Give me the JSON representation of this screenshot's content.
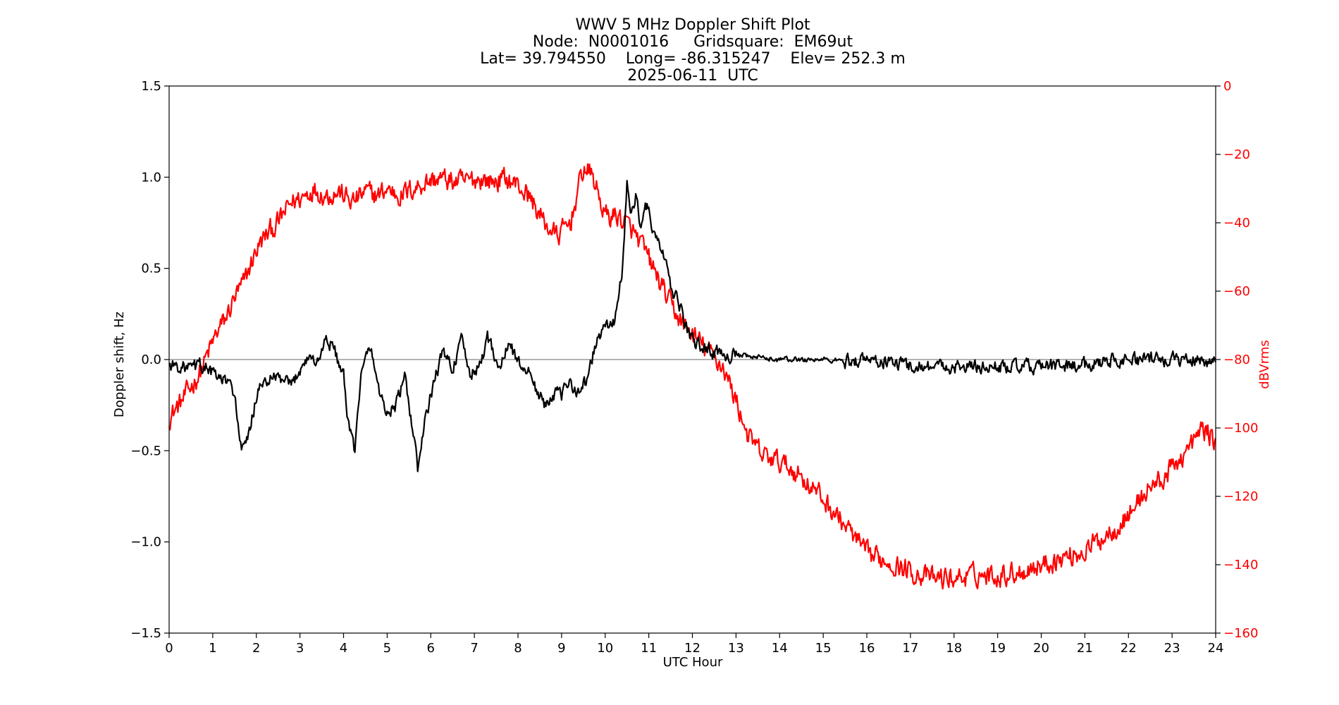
{
  "chart_data": {
    "type": "line",
    "title_lines": [
      "WWV 5 MHz Doppler Shift Plot",
      "Node:  N0001016     Gridsquare:  EM69ut",
      "Lat= 39.794550    Long= -86.315247    Elev= 252.3 m",
      "2025-06-11  UTC"
    ],
    "xlabel": "UTC Hour",
    "ylabel_left": "Doppler shift, Hz",
    "ylabel_right": "dBVrms",
    "xlim": [
      0,
      24
    ],
    "ylim_left": [
      -1.5,
      1.5
    ],
    "ylim_right": [
      -160,
      0
    ],
    "xticks": [
      "0",
      "1",
      "2",
      "3",
      "4",
      "5",
      "6",
      "7",
      "8",
      "9",
      "10",
      "11",
      "12",
      "13",
      "14",
      "15",
      "16",
      "17",
      "18",
      "19",
      "20",
      "21",
      "22",
      "23",
      "24"
    ],
    "yticks_left": [
      "1.5",
      "1.0",
      "0.5",
      "0.0",
      "−0.5",
      "−1.0",
      "−1.5"
    ],
    "yticks_left_values": [
      1.5,
      1.0,
      0.5,
      0.0,
      -0.5,
      -1.0,
      -1.5
    ],
    "yticks_right": [
      "0",
      "−20",
      "−40",
      "−60",
      "−80",
      "−100",
      "−120",
      "−140",
      "−160"
    ],
    "yticks_right_values": [
      0,
      -20,
      -40,
      -60,
      -80,
      -100,
      -120,
      -140,
      -160
    ],
    "zero_line": {
      "y": 0,
      "color": "#999999"
    },
    "grid": false,
    "series": [
      {
        "axis": "left",
        "color": "#000000",
        "jitter": 0.06,
        "x": [
          0,
          0.3,
          0.5,
          0.7,
          0.9,
          1.1,
          1.3,
          1.5,
          1.65,
          1.8,
          2.0,
          2.2,
          2.5,
          2.8,
          3.0,
          3.2,
          3.4,
          3.6,
          3.8,
          4.0,
          4.1,
          4.25,
          4.4,
          4.6,
          4.8,
          5.0,
          5.2,
          5.4,
          5.6,
          5.7,
          5.9,
          6.1,
          6.3,
          6.5,
          6.7,
          6.9,
          7.1,
          7.3,
          7.6,
          7.8,
          8.0,
          8.2,
          8.4,
          8.6,
          8.8,
          9.0,
          9.2,
          9.4,
          9.6,
          9.8,
          10.0,
          10.2,
          10.4,
          10.5,
          10.6,
          10.7,
          10.8,
          10.95,
          11.1,
          11.3,
          11.5,
          11.7,
          11.9,
          12.1,
          12.3,
          12.5,
          12.8,
          13.0,
          13.5,
          14.0,
          14.5,
          15.0,
          15.5,
          16.0,
          17.0,
          18.0,
          19.0,
          20.0,
          21.0,
          21.5,
          22.0,
          22.5,
          23.0,
          23.5,
          24.0
        ],
        "y": [
          -0.03,
          -0.04,
          -0.05,
          -0.03,
          -0.05,
          -0.1,
          -0.12,
          -0.18,
          -0.5,
          -0.45,
          -0.2,
          -0.12,
          -0.1,
          -0.15,
          -0.05,
          0.02,
          -0.02,
          0.12,
          0.05,
          -0.1,
          -0.35,
          -0.5,
          -0.1,
          0.08,
          -0.15,
          -0.3,
          -0.25,
          -0.1,
          -0.4,
          -0.6,
          -0.3,
          -0.1,
          0.05,
          -0.05,
          0.1,
          -0.08,
          -0.05,
          0.12,
          -0.05,
          0.1,
          -0.02,
          -0.05,
          -0.15,
          -0.25,
          -0.18,
          -0.2,
          -0.12,
          -0.18,
          -0.1,
          0.1,
          0.18,
          0.2,
          0.5,
          0.95,
          0.8,
          0.9,
          0.75,
          0.85,
          0.7,
          0.6,
          0.4,
          0.3,
          0.15,
          0.08,
          0.06,
          0.04,
          0.03,
          0.02,
          0.01,
          0.0,
          0.0,
          0.0,
          -0.01,
          0.0,
          -0.03,
          -0.04,
          -0.04,
          -0.04,
          -0.03,
          0.0,
          0.0,
          0.0,
          0.0,
          0.0,
          -0.01
        ]
      },
      {
        "axis": "right",
        "color": "#ff0000",
        "jitter": 5,
        "x": [
          0,
          0.3,
          0.5,
          0.7,
          0.9,
          1.1,
          1.3,
          1.5,
          1.7,
          2.0,
          2.2,
          2.5,
          2.8,
          3.0,
          3.3,
          3.6,
          3.9,
          4.2,
          4.5,
          4.8,
          5.0,
          5.3,
          5.6,
          5.9,
          6.2,
          6.5,
          6.8,
          7.1,
          7.4,
          7.7,
          8.0,
          8.3,
          8.6,
          8.9,
          9.2,
          9.5,
          9.7,
          10.0,
          10.3,
          10.6,
          10.9,
          11.2,
          11.5,
          11.8,
          12.1,
          12.4,
          12.7,
          13.0,
          13.3,
          13.6,
          14.0,
          14.4,
          14.8,
          15.2,
          15.6,
          16.0,
          16.5,
          17.0,
          17.5,
          18.0,
          18.5,
          19.0,
          19.5,
          20.0,
          20.5,
          21.0,
          21.3,
          21.6,
          21.9,
          22.2,
          22.5,
          22.8,
          23.1,
          23.4,
          23.7,
          24.0
        ],
        "y": [
          -97,
          -92,
          -88,
          -84,
          -78,
          -72,
          -68,
          -62,
          -58,
          -48,
          -44,
          -40,
          -34,
          -33,
          -30,
          -32,
          -31,
          -34,
          -31,
          -32,
          -30,
          -32,
          -30,
          -28,
          -27,
          -28,
          -28,
          -27,
          -28,
          -27,
          -29,
          -33,
          -40,
          -44,
          -40,
          -24,
          -26,
          -38,
          -38,
          -42,
          -48,
          -56,
          -64,
          -70,
          -74,
          -78,
          -82,
          -92,
          -103,
          -108,
          -110,
          -113,
          -118,
          -124,
          -130,
          -137,
          -139,
          -142,
          -144,
          -144,
          -143,
          -143,
          -142,
          -140,
          -138,
          -136,
          -133,
          -130,
          -127,
          -122,
          -117,
          -115,
          -110,
          -106,
          -100,
          -104
        ]
      }
    ]
  }
}
